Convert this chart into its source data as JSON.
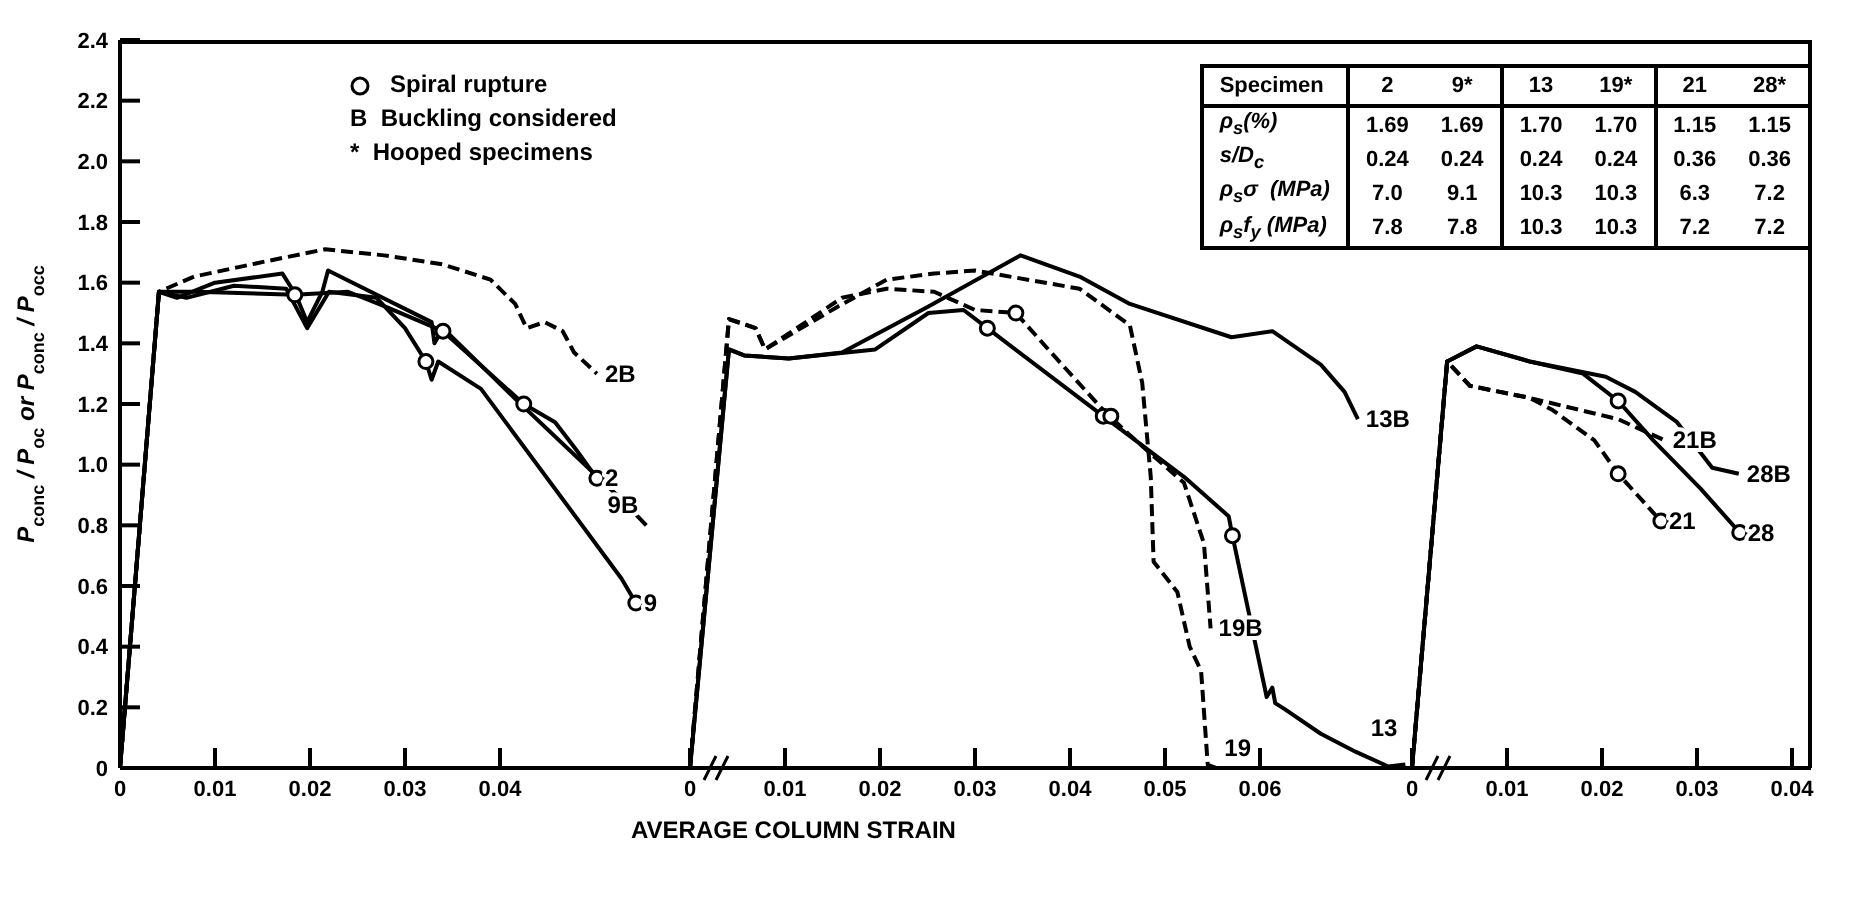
{
  "chart_data": [
    {
      "type": "line",
      "ylabel": "P$_{conc}$ / P$_{oc}$  or  P$_{conc}$ / P$_{occ}$",
      "xlim": [
        0,
        0.06
      ],
      "xticks": [
        0,
        0.01,
        0.02,
        0.03,
        0.04
      ],
      "ylim": [
        0,
        2.4
      ],
      "yticks": [
        0,
        0.2,
        0.4,
        0.6,
        0.8,
        {
          "value": 1,
          "label": "1.0"
        },
        1.2,
        1.4,
        1.6,
        1.8,
        {
          "value": 2,
          "label": "2.0"
        },
        2.2,
        2.4
      ],
      "marker": "none",
      "legend": "top right",
      "annotations": [
        "B  Buckling considered",
        "*  Hooped specimens"
      ],
      "series": [
        {
          "name": "2B",
          "color": "#000000",
          "line_style": "dashed",
          "x": [
            0,
            0.0041,
            0.0078,
            0.0153,
            0.0216,
            0.0278,
            0.034,
            0.039,
            0.0416,
            0.0428,
            0.0447,
            0.0466,
            0.0478,
            0.0502
          ],
          "values": [
            0,
            1.57,
            1.62,
            1.67,
            1.71,
            1.69,
            1.66,
            1.61,
            1.53,
            1.45,
            1.47,
            1.44,
            1.37,
            1.3
          ]
        },
        {
          "name": "2",
          "color": "#000000",
          "line_style": "solid",
          "x": [
            0,
            0.0041,
            0.008,
            0.0184,
            0.024,
            0.028,
            0.034,
            0.0425,
            0.0458,
            0.048,
            0.0502
          ],
          "values": [
            0,
            1.57,
            1.57,
            1.56,
            1.57,
            1.52,
            1.44,
            1.2,
            1.14,
            1.05,
            0.955
          ]
        },
        {
          "name": "9B",
          "color": "#000000",
          "line_style": "solid",
          "x": [
            0,
            0.0041,
            0.006,
            0.01,
            0.0171,
            0.0185,
            0.0197,
            0.0213,
            0.0219,
            0.0328,
            0.0331,
            0.034,
            0.0415,
            0.0528,
            0.0554
          ],
          "values": [
            0,
            1.57,
            1.55,
            1.6,
            1.63,
            1.56,
            1.47,
            1.57,
            1.64,
            1.47,
            1.4,
            1.45,
            1.22,
            0.885,
            0.8
          ]
        },
        {
          "name": "9",
          "color": "#000000",
          "line_style": "solid",
          "x": [
            0,
            0.0041,
            0.007,
            0.012,
            0.0175,
            0.0197,
            0.022,
            0.027,
            0.03,
            0.0322,
            0.0328,
            0.0335,
            0.038,
            0.0528,
            0.0543
          ],
          "values": [
            0,
            1.57,
            1.55,
            1.59,
            1.58,
            1.45,
            1.57,
            1.55,
            1.45,
            1.34,
            1.28,
            1.34,
            1.25,
            0.624,
            0.544
          ]
        },
        {
          "name": "Spiral rupture",
          "type": "scatter",
          "marker": "circle",
          "color": "#000000",
          "x": [
            0.0184,
            0.034,
            0.0425,
            0.0502,
            0.0322,
            0.0543
          ],
          "values": [
            1.56,
            1.44,
            1.2,
            0.955,
            1.34,
            0.544
          ]
        }
      ]
    },
    {
      "type": "line",
      "xlabel": "AVERAGE COLUMN STRAIN",
      "xlim": [
        0,
        0.076
      ],
      "xticks": [
        0,
        0.01,
        0.02,
        0.03,
        0.04,
        0.05,
        0.06
      ],
      "ylim": [
        0,
        2.4
      ],
      "tick_labels": "x",
      "marker": "none",
      "series": [
        {
          "name": "13B",
          "color": "#000000",
          "line_style": "solid",
          "x": [
            0,
            0.0041,
            0.0057,
            0.0104,
            0.016,
            0.025,
            0.0348,
            0.041,
            0.0463,
            0.057,
            0.0613,
            0.0664,
            0.0689,
            0.0703
          ],
          "values": [
            0,
            1.38,
            1.36,
            1.35,
            1.37,
            1.52,
            1.69,
            1.62,
            1.53,
            1.42,
            1.44,
            1.33,
            1.24,
            1.15
          ]
        },
        {
          "name": "13",
          "color": "#000000",
          "line_style": "solid",
          "x": [
            0,
            0.0041,
            0.0057,
            0.0104,
            0.0195,
            0.0251,
            0.0288,
            0.0313,
            0.0435,
            0.052,
            0.0567,
            0.0571,
            0.0607,
            0.0613,
            0.0616,
            0.0626,
            0.0664,
            0.0701,
            0.0735,
            0.0753
          ],
          "values": [
            0,
            1.38,
            1.36,
            1.35,
            1.38,
            1.5,
            1.51,
            1.45,
            1.16,
            0.96,
            0.83,
            0.766,
            0.234,
            0.265,
            0.214,
            0.194,
            0.113,
            0.053,
            0.005,
            0.012
          ]
        },
        {
          "name": "19",
          "color": "#000000",
          "line_style": "dashed",
          "x": [
            0,
            0.0041,
            0.0069,
            0.0079,
            0.0155,
            0.0207,
            0.0257,
            0.03,
            0.041,
            0.0463,
            0.0476,
            0.0485,
            0.0488,
            0.0513,
            0.0526,
            0.0538,
            0.0545,
            0.0554
          ],
          "values": [
            0,
            1.48,
            1.45,
            1.38,
            1.52,
            1.61,
            1.63,
            1.64,
            1.58,
            1.46,
            1.27,
            0.96,
            0.68,
            0.58,
            0.4,
            0.32,
            0.01,
            0
          ]
        },
        {
          "name": "19B",
          "color": "#000000",
          "line_style": "dashed",
          "x": [
            0,
            0.0041,
            0.0069,
            0.0079,
            0.016,
            0.0207,
            0.0257,
            0.03,
            0.0343,
            0.038,
            0.0435,
            0.0462,
            0.052,
            0.0541,
            0.0548
          ],
          "values": [
            0,
            1.48,
            1.45,
            1.38,
            1.55,
            1.58,
            1.57,
            1.51,
            1.5,
            1.37,
            1.18,
            1.1,
            0.94,
            0.74,
            0.46
          ]
        },
        {
          "type": "scatter",
          "marker": "circle",
          "color": "#000000",
          "x": [
            0.0313,
            0.0343,
            0.0435,
            0.0443,
            0.0571
          ],
          "values": [
            1.45,
            1.5,
            1.16,
            1.16,
            0.766
          ]
        }
      ]
    },
    {
      "type": "line",
      "xlim": [
        0,
        0.042
      ],
      "xticks": [
        0,
        0.01,
        0.02,
        0.03,
        0.04
      ],
      "ylim": [
        0,
        2.4
      ],
      "tick_labels": "x",
      "marker": "none",
      "series": [
        {
          "name": "28B",
          "color": "#000000",
          "line_style": "solid",
          "x": [
            0,
            0.0037,
            0.0068,
            0.0124,
            0.0204,
            0.0235,
            0.0279,
            0.0316,
            0.0344
          ],
          "values": [
            0,
            1.34,
            1.39,
            1.34,
            1.29,
            1.24,
            1.14,
            0.99,
            0.97
          ]
        },
        {
          "name": "28",
          "color": "#000000",
          "line_style": "solid",
          "x": [
            0,
            0.0037,
            0.0068,
            0.0124,
            0.018,
            0.0217,
            0.0254,
            0.0304,
            0.0345
          ],
          "values": [
            0,
            1.34,
            1.39,
            1.34,
            1.3,
            1.21,
            1.08,
            0.92,
            0.776
          ]
        },
        {
          "name": "21B",
          "color": "#000000",
          "line_style": "dashed",
          "x": [
            0,
            0.0037,
            0.0061,
            0.0124,
            0.0217,
            0.0266
          ],
          "values": [
            0,
            1.34,
            1.26,
            1.22,
            1.15,
            1.08
          ]
        },
        {
          "name": "21",
          "color": "#000000",
          "line_style": "dashed",
          "x": [
            0,
            0.0037,
            0.0061,
            0.0124,
            0.0148,
            0.0192,
            0.0217,
            0.0262
          ],
          "values": [
            0,
            1.34,
            1.26,
            1.22,
            1.18,
            1.08,
            0.97,
            0.814
          ]
        },
        {
          "type": "scatter",
          "marker": "circle",
          "color": "#000000",
          "x": [
            0.0217,
            0.0345,
            0.0217,
            0.0262
          ],
          "values": [
            1.21,
            0.776,
            0.97,
            0.814
          ]
        }
      ]
    },
    {
      "type": "other",
      "annotations": [
        "Specimen",
        "2",
        "9*",
        "13",
        "19*",
        "21",
        "28*",
        "ρ$_{s}$(%)",
        "1.69",
        "1.69",
        "1.70",
        "1.70",
        "1.15",
        "1.15",
        "s/D$_{c}$",
        "0.24",
        "0.24",
        "0.24",
        "0.24",
        "0.36",
        "0.36",
        "ρ$_{s}$σ  (MPa)",
        "7.0",
        "9.1",
        "10.3",
        "10.3",
        "6.3",
        "7.2",
        "ρ$_{s}$f$_{y}$ (MPa)",
        "7.8",
        "7.8",
        "10.3",
        "10.3",
        "7.2",
        "7.2"
      ]
    }
  ]
}
